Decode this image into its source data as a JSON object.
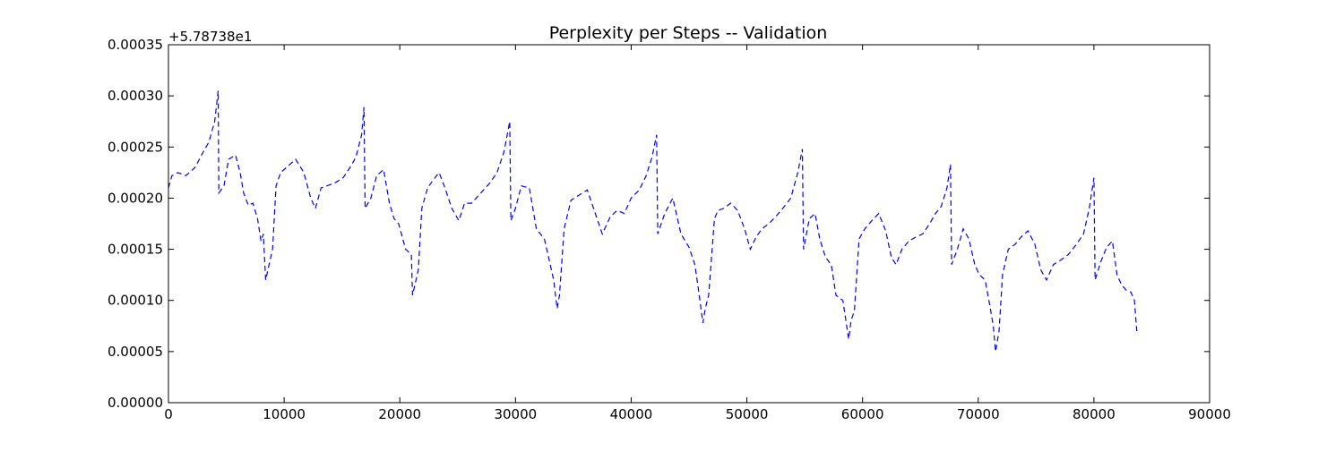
{
  "chart_data": {
    "type": "line",
    "title": "Perplexity per Steps -- Validation",
    "xlabel": "",
    "ylabel": "",
    "y_offset_label": "+5.78738e1",
    "xlim": [
      0,
      90000
    ],
    "ylim": [
      0,
      0.00035
    ],
    "x_ticks": [
      "0",
      "10000",
      "20000",
      "30000",
      "40000",
      "50000",
      "60000",
      "70000",
      "80000",
      "90000"
    ],
    "y_ticks": [
      "0.00000",
      "0.00005",
      "0.00010",
      "0.00015",
      "0.00020",
      "0.00025",
      "0.00030",
      "0.00035"
    ],
    "grid": false,
    "line_style": "dashed",
    "line_color": "#0000ff",
    "series": [
      {
        "x": [
          0,
          300,
          800,
          1500,
          2300,
          3000,
          3500,
          4000,
          4300,
          4350,
          4800,
          5200,
          5800,
          6200,
          6500,
          6900,
          7300,
          7700,
          8000,
          8200,
          8400,
          8700,
          9000,
          9300,
          9700,
          10200,
          11000,
          11700,
          12300,
          12700,
          13200,
          13700,
          14400,
          15100,
          15700,
          16200,
          16700,
          16900,
          17000,
          17500,
          18000,
          18600,
          19100,
          19500,
          19900,
          20500,
          21000,
          21100,
          21600,
          21900,
          22400,
          22900,
          23400,
          23900,
          24500,
          25100,
          25600,
          26200,
          27000,
          27800,
          28400,
          29000,
          29500,
          29600,
          30000,
          30500,
          31200,
          31800,
          32500,
          33000,
          33300,
          33600,
          33800,
          34200,
          34800,
          35500,
          36200,
          36900,
          37500,
          38200,
          38800,
          39400,
          40000,
          40700,
          41300,
          41800,
          42200,
          42300,
          42900,
          43600,
          44300,
          45000,
          45500,
          45800,
          46200,
          46400,
          46700,
          47200,
          47500,
          48000,
          48600,
          49200,
          49800,
          50300,
          50800,
          51300,
          51900,
          52500,
          53100,
          53800,
          54400,
          54800,
          54900,
          55400,
          55900,
          56300,
          56800,
          57300,
          57700,
          58300,
          58800,
          59000,
          59300,
          59700,
          60200,
          60800,
          61400,
          62000,
          62500,
          62900,
          63400,
          64000,
          64600,
          65200,
          65800,
          66300,
          66800,
          67300,
          67600,
          67700,
          68200,
          68700,
          69200,
          69700,
          70100,
          70600,
          71000,
          71300,
          71500,
          71800,
          72100,
          72600,
          73200,
          73700,
          74300,
          74900,
          75400,
          75900,
          76500,
          77200,
          77800,
          78500,
          79100,
          79600,
          80000,
          80100,
          80600,
          81100,
          81600,
          82000,
          82400,
          82800,
          83200,
          83500,
          83700
        ],
        "y": [
          0.00021,
          0.000222,
          0.000225,
          0.000222,
          0.00023,
          0.000245,
          0.000255,
          0.000275,
          0.000305,
          0.000205,
          0.000212,
          0.000238,
          0.000242,
          0.000225,
          0.000205,
          0.000193,
          0.000195,
          0.00018,
          0.000158,
          0.000165,
          0.00012,
          0.000135,
          0.00015,
          0.000212,
          0.000225,
          0.00023,
          0.000238,
          0.000225,
          0.0002,
          0.00019,
          0.00021,
          0.000212,
          0.000215,
          0.00022,
          0.00023,
          0.00024,
          0.000262,
          0.000289,
          0.00019,
          0.0002,
          0.000222,
          0.000228,
          0.000195,
          0.00018,
          0.000175,
          0.00015,
          0.000145,
          0.000105,
          0.00013,
          0.00019,
          0.00021,
          0.000218,
          0.000225,
          0.00021,
          0.00019,
          0.000178,
          0.000195,
          0.000195,
          0.000205,
          0.000215,
          0.000225,
          0.000245,
          0.000275,
          0.000178,
          0.00019,
          0.000212,
          0.00021,
          0.00017,
          0.00016,
          0.000135,
          0.00012,
          9.2e-05,
          0.000105,
          0.00017,
          0.000198,
          0.000203,
          0.000208,
          0.000185,
          0.000165,
          0.000182,
          0.000188,
          0.000185,
          0.0002,
          0.000208,
          0.000222,
          0.00024,
          0.000262,
          0.000165,
          0.000185,
          0.0002,
          0.000165,
          0.000152,
          0.000135,
          0.000112,
          7.8e-05,
          9.2e-05,
          0.000105,
          0.00018,
          0.000188,
          0.00019,
          0.000195,
          0.000188,
          0.00017,
          0.00015,
          0.000162,
          0.00017,
          0.000175,
          0.000182,
          0.00019,
          0.0002,
          0.000225,
          0.000248,
          0.00015,
          0.00018,
          0.000185,
          0.00016,
          0.000142,
          0.000135,
          0.000105,
          0.0001,
          6.2e-05,
          8e-05,
          9e-05,
          0.00016,
          0.00017,
          0.000178,
          0.000185,
          0.000168,
          0.000142,
          0.000135,
          0.00015,
          0.000158,
          0.000162,
          0.000165,
          0.000175,
          0.000185,
          0.000192,
          0.00021,
          0.000233,
          0.000135,
          0.00015,
          0.00017,
          0.00016,
          0.000135,
          0.000125,
          0.00012,
          9.5e-05,
          7.5e-05,
          5e-05,
          7e-05,
          0.000125,
          0.00015,
          0.000155,
          0.000162,
          0.000168,
          0.000155,
          0.00013,
          0.00012,
          0.000135,
          0.00014,
          0.000145,
          0.000155,
          0.000165,
          0.00019,
          0.00022,
          0.00012,
          0.000138,
          0.000152,
          0.000158,
          0.000125,
          0.000115,
          0.00011,
          0.000108,
          0.0001,
          7e-05
        ]
      }
    ]
  }
}
